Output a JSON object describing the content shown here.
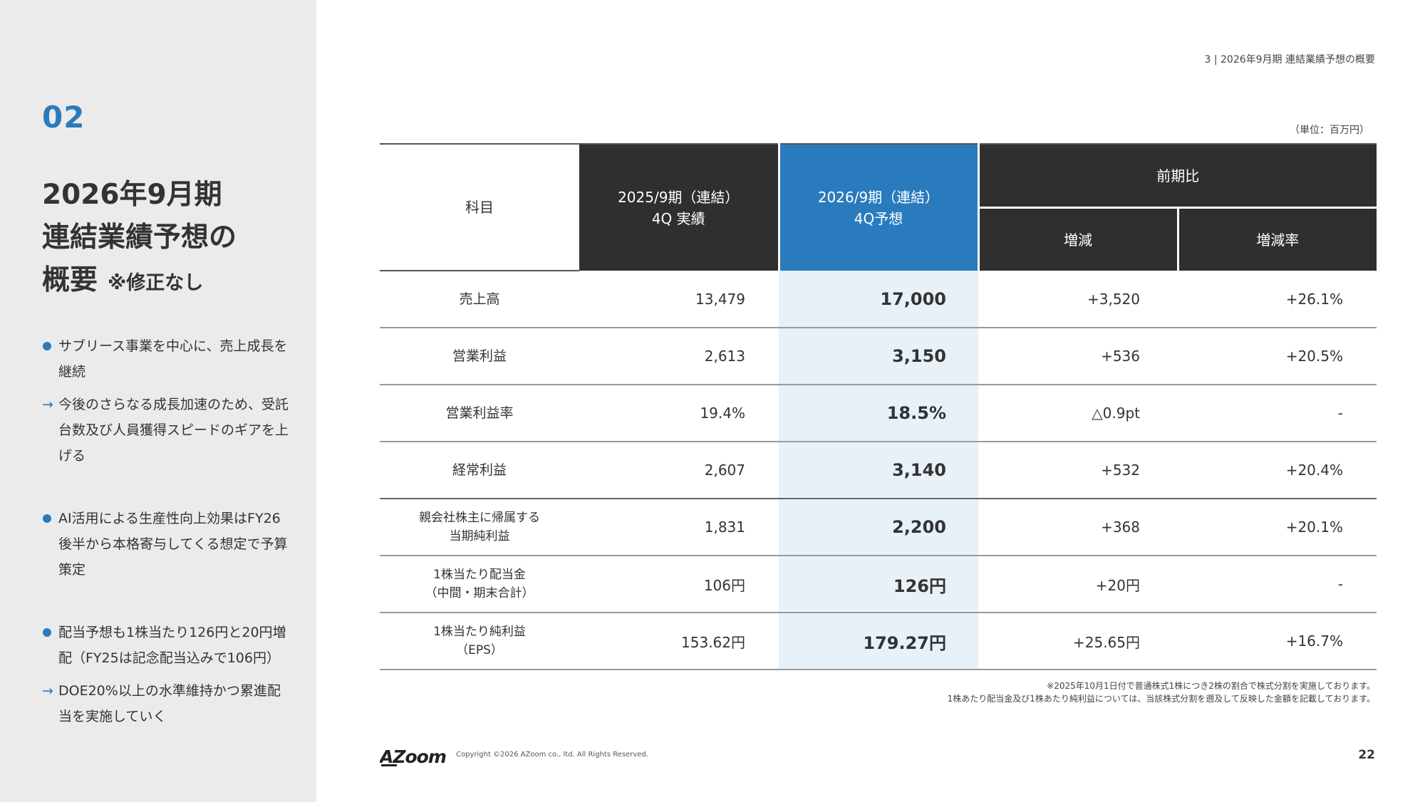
{
  "header": {
    "page_label": "3 | 2026年9月期 連結業績予想の概要",
    "unit": "（単位：百万円）"
  },
  "sidebar": {
    "section_number": "02",
    "title_lines": [
      "2026年9月期",
      "連結業績予想の",
      "概要"
    ],
    "title_note": "※修正なし",
    "points": [
      {
        "marker": "dot",
        "text": "サブリース事業を中心に、売上成長を継続"
      },
      {
        "marker": "arrow",
        "text": "今後のさらなる成長加速のため、受託台数及び人員獲得スピードのギアを上げる"
      },
      {
        "marker": "dot",
        "text": "AI活用による生産性向上効果はFY26後半から本格寄与してくる想定で予算策定"
      },
      {
        "marker": "dot",
        "text": "配当予想も1株当たり126円と20円増配（FY25は記念配当込みで106円）"
      },
      {
        "marker": "arrow",
        "text": "DOE20%以上の水準維持かつ累進配当を実施していく"
      }
    ],
    "arrow_glyph": "→"
  },
  "table": {
    "headers": {
      "subject": "科目",
      "prev_line1": "2025/9期（連結）",
      "prev_line2": "4Q 実績",
      "cur_line1": "2026/9期（連結）",
      "cur_line2": "4Q予想",
      "yoy": "前期比",
      "diff": "増減",
      "rate": "増減率"
    },
    "rows": [
      {
        "subject_line1": "売上高",
        "subject_line2": "",
        "prev": "13,479",
        "cur": "17,000",
        "diff": "+3,520",
        "rate": "+26.1%"
      },
      {
        "subject_line1": "営業利益",
        "subject_line2": "",
        "prev": "2,613",
        "cur": "3,150",
        "diff": "+536",
        "rate": "+20.5%"
      },
      {
        "subject_line1": "営業利益率",
        "subject_line2": "",
        "prev": "19.4%",
        "cur": "18.5%",
        "diff": "△0.9pt",
        "rate": "-"
      },
      {
        "subject_line1": "経常利益",
        "subject_line2": "",
        "prev": "2,607",
        "cur": "3,140",
        "diff": "+532",
        "rate": "+20.4%"
      },
      {
        "subject_line1": "親会社株主に帰属する",
        "subject_line2": "当期純利益",
        "prev": "1,831",
        "cur": "2,200",
        "diff": "+368",
        "rate": "+20.1%"
      },
      {
        "subject_line1": "1株当たり配当金",
        "subject_line2": "（中間・期末合計）",
        "prev": "106円",
        "cur": "126円",
        "diff": "+20円",
        "rate": "-"
      },
      {
        "subject_line1": "1株当たり純利益",
        "subject_line2": "（EPS）",
        "prev": "153.62円",
        "cur": "179.27円",
        "diff": "+25.65円",
        "rate": "+16.7%"
      }
    ]
  },
  "footnote": {
    "line1": "※2025年10月1日付で普通株式1株につき2株の割合で株式分割を実施しております。",
    "line2": "1株あたり配当金及び1株あたり純利益については、当該株式分割を遡及して反映した金額を記載しております。"
  },
  "footer": {
    "logo_text": "AZoom",
    "copyright": "Copyright ©2026 AZoom co., ltd. All Rights Reserved.",
    "page_number": "22"
  },
  "colors": {
    "accent_blue": "#2a7bbd",
    "header_dark": "#2f2f2f",
    "highlight_col": "#e8f0f8",
    "sidebar_bg": "#ebebeb"
  }
}
